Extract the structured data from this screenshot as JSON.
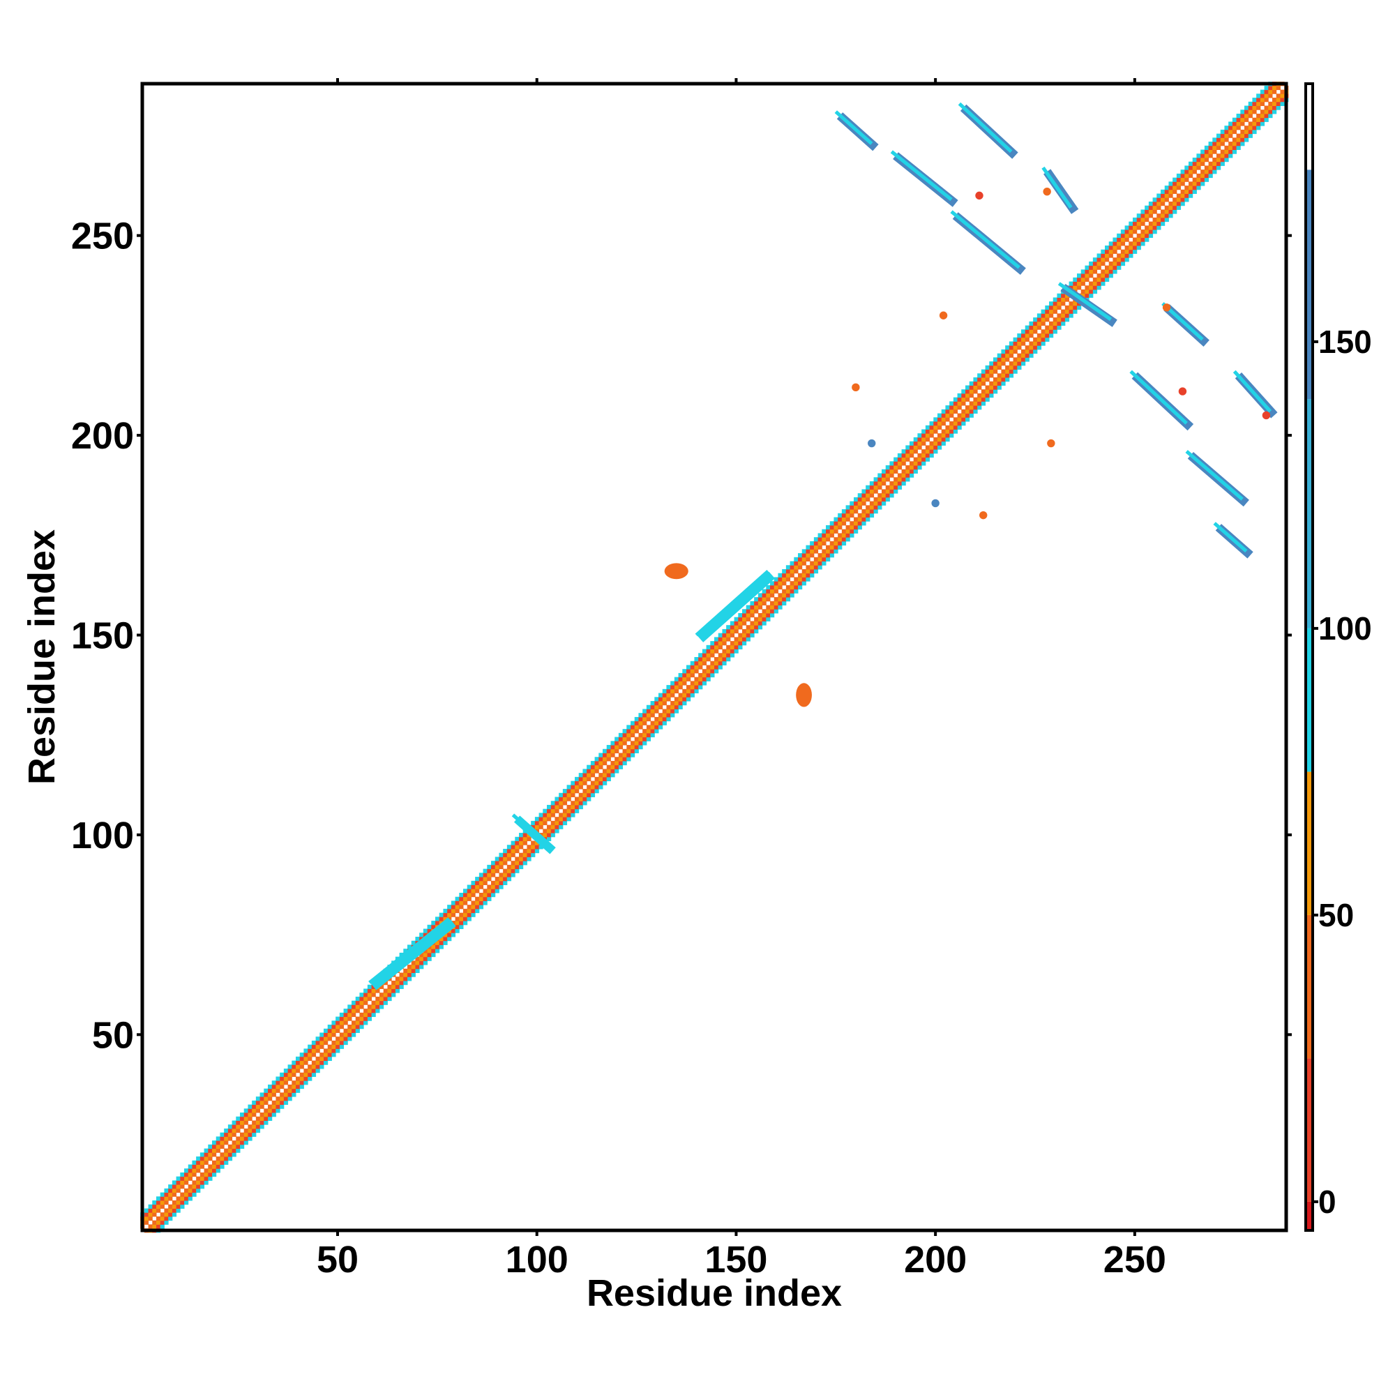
{
  "chart_data": {
    "type": "heatmap",
    "title": "",
    "xlabel": "Residue index",
    "ylabel": "Residue index",
    "xlim": [
      1,
      288
    ],
    "ylim": [
      1,
      288
    ],
    "x_ticks": [
      50,
      100,
      150,
      200,
      250
    ],
    "y_ticks": [
      50,
      100,
      150,
      200,
      250
    ],
    "colorbar": {
      "range": [
        -5,
        195
      ],
      "ticks": [
        0,
        50,
        100,
        150
      ],
      "bands": [
        {
          "from": -5,
          "to": 0,
          "color": "#d7191c"
        },
        {
          "from": 0,
          "to": 25,
          "color": "#e8412a"
        },
        {
          "from": 25,
          "to": 50,
          "color": "#f06a1e"
        },
        {
          "from": 50,
          "to": 75,
          "color": "#f59a0a"
        },
        {
          "from": 75,
          "to": 100,
          "color": "#22d3e6"
        },
        {
          "from": 100,
          "to": 140,
          "color": "#3bb0d6"
        },
        {
          "from": 140,
          "to": 180,
          "color": "#4a86c0"
        },
        {
          "from": 180,
          "to": 195,
          "color": "#ffffff"
        }
      ]
    },
    "diagonal_band": {
      "from": 1,
      "to": 288,
      "value": 40
    },
    "segments": [
      {
        "x1": 59,
        "y1": 62,
        "x2": 79,
        "y2": 78,
        "value": 95
      },
      {
        "x1": 141,
        "y1": 149,
        "x2": 159,
        "y2": 165,
        "value": 95
      },
      {
        "x1": 95,
        "y1": 104,
        "x2": 104,
        "y2": 96,
        "value": 95
      },
      {
        "x1": 176,
        "y1": 280,
        "x2": 185,
        "y2": 272,
        "value": 150
      },
      {
        "x1": 207,
        "y1": 282,
        "x2": 220,
        "y2": 270,
        "value": 150
      },
      {
        "x1": 190,
        "y1": 270,
        "x2": 205,
        "y2": 258,
        "value": 150
      },
      {
        "x1": 205,
        "y1": 255,
        "x2": 222,
        "y2": 241,
        "value": 150
      },
      {
        "x1": 228,
        "y1": 266,
        "x2": 235,
        "y2": 256,
        "value": 150
      },
      {
        "x1": 232,
        "y1": 237,
        "x2": 245,
        "y2": 228,
        "value": 150
      },
      {
        "x1": 250,
        "y1": 215,
        "x2": 264,
        "y2": 202,
        "value": 150
      },
      {
        "x1": 264,
        "y1": 195,
        "x2": 278,
        "y2": 183,
        "value": 150
      },
      {
        "x1": 271,
        "y1": 177,
        "x2": 279,
        "y2": 170,
        "value": 150
      },
      {
        "x1": 258,
        "y1": 232,
        "x2": 268,
        "y2": 223,
        "value": 150
      },
      {
        "x1": 276,
        "y1": 215,
        "x2": 285,
        "y2": 205,
        "value": 150
      }
    ],
    "blobs": [
      {
        "x": 135,
        "y": 166,
        "rx": 3,
        "ry": 2,
        "value": 35
      },
      {
        "x": 167,
        "y": 135,
        "rx": 2,
        "ry": 3,
        "value": 35
      },
      {
        "x": 180,
        "y": 212,
        "rx": 1,
        "ry": 1,
        "value": 45
      },
      {
        "x": 212,
        "y": 180,
        "rx": 1,
        "ry": 1,
        "value": 45
      },
      {
        "x": 211,
        "y": 260,
        "rx": 1,
        "ry": 1,
        "value": 15
      },
      {
        "x": 229,
        "y": 198,
        "rx": 1,
        "ry": 1,
        "value": 45
      },
      {
        "x": 228,
        "y": 261,
        "rx": 1,
        "ry": 1,
        "value": 45
      },
      {
        "x": 202,
        "y": 230,
        "rx": 1,
        "ry": 1,
        "value": 45
      },
      {
        "x": 258,
        "y": 232,
        "rx": 1,
        "ry": 1,
        "value": 35
      },
      {
        "x": 262,
        "y": 211,
        "rx": 1,
        "ry": 1,
        "value": 15
      },
      {
        "x": 283,
        "y": 205,
        "rx": 1,
        "ry": 1,
        "value": 15
      },
      {
        "x": 184,
        "y": 198,
        "rx": 1,
        "ry": 1,
        "value": 150
      },
      {
        "x": 200,
        "y": 183,
        "rx": 1,
        "ry": 1,
        "value": 150
      }
    ]
  }
}
